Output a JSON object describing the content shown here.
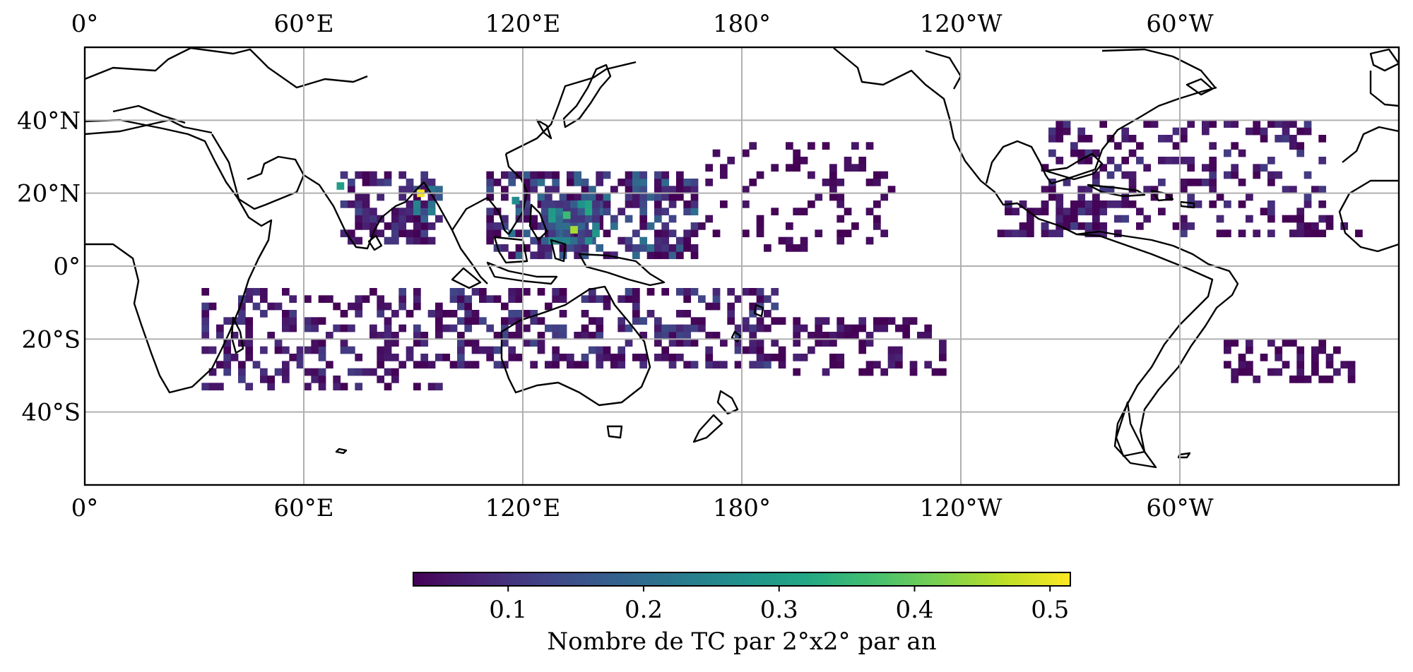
{
  "chart_data": {
    "type": "heatmap",
    "projection": "PlateCarree (central longitude 180°)",
    "grid_cell": "2°x2°",
    "x_ticks": [
      "0°",
      "60°E",
      "120°E",
      "180°",
      "120°W",
      "60°W"
    ],
    "y_ticks": [
      "40°N",
      "20°N",
      "0°",
      "20°S",
      "40°S"
    ],
    "lon_range": [
      0,
      360
    ],
    "lat_range": [
      -60,
      60
    ],
    "grid": true,
    "colormap": "viridis",
    "colorbar": {
      "label": "Nombre de TC par 2°x2° par an",
      "ticks": [
        "0.1",
        "0.2",
        "0.3",
        "0.4",
        "0.5"
      ],
      "range": [
        0.03,
        0.515
      ],
      "orientation": "horizontal",
      "placement": "bottom"
    },
    "regions": [
      {
        "lon": [
          70,
          96
        ],
        "lat": [
          6,
          26
        ],
        "low": 0.03,
        "high": 0.14,
        "density": 0.55
      },
      {
        "lon": [
          86,
          98
        ],
        "lat": [
          10,
          22
        ],
        "low": 0.05,
        "high": 0.25,
        "density": 0.75
      },
      {
        "lon": [
          110,
          168
        ],
        "lat": [
          2,
          26
        ],
        "low": 0.03,
        "high": 0.22,
        "density": 0.6
      },
      {
        "lon": [
          125,
          140
        ],
        "lat": [
          6,
          18
        ],
        "low": 0.1,
        "high": 0.32,
        "density": 0.85
      },
      {
        "lon": [
          168,
          222
        ],
        "lat": [
          4,
          34
        ],
        "low": 0.03,
        "high": 0.06,
        "density": 0.18
      },
      {
        "lon": [
          250,
          280
        ],
        "lat": [
          8,
          18
        ],
        "low": 0.03,
        "high": 0.09,
        "density": 0.5
      },
      {
        "lon": [
          262,
          340
        ],
        "lat": [
          8,
          40
        ],
        "low": 0.03,
        "high": 0.12,
        "density": 0.3
      },
      {
        "lon": [
          330,
          350
        ],
        "lat": [
          8,
          14
        ],
        "low": 0.03,
        "high": 0.07,
        "density": 0.45
      },
      {
        "lon": [
          32,
          100
        ],
        "lat": [
          -34,
          -6
        ],
        "low": 0.03,
        "high": 0.12,
        "density": 0.4
      },
      {
        "lon": [
          100,
          190
        ],
        "lat": [
          -28,
          -6
        ],
        "low": 0.03,
        "high": 0.14,
        "density": 0.45
      },
      {
        "lon": [
          190,
          235
        ],
        "lat": [
          -30,
          -14
        ],
        "low": 0.03,
        "high": 0.08,
        "density": 0.35
      },
      {
        "lon": [
          310,
          348
        ],
        "lat": [
          -32,
          -20
        ],
        "low": 0.03,
        "high": 0.07,
        "density": 0.35
      }
    ],
    "peaks": [
      {
        "lon": 91,
        "lat": 19,
        "value": 0.51
      },
      {
        "lon": 133,
        "lat": 9,
        "value": 0.45
      },
      {
        "lon": 131,
        "lat": 13,
        "value": 0.36
      },
      {
        "lon": 69,
        "lat": 21,
        "value": 0.3
      },
      {
        "lon": 117,
        "lat": 17,
        "value": 0.26
      }
    ]
  }
}
